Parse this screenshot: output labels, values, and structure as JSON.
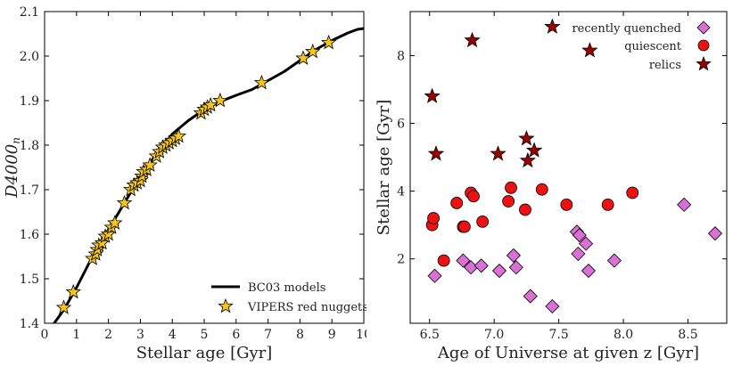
{
  "chart_data": [
    {
      "type": "line+scatter",
      "xlabel": "Stellar age [Gyr]",
      "ylabel": "D4000",
      "ylabel_sub": "n",
      "xlim": [
        0,
        10
      ],
      "ylim": [
        1.4,
        2.1
      ],
      "xticks": [
        0,
        1,
        2,
        3,
        4,
        5,
        6,
        7,
        8,
        9,
        10
      ],
      "yticks": [
        1.4,
        1.5,
        1.6,
        1.7,
        1.8,
        1.9,
        2.0,
        2.1
      ],
      "ytick_labels": [
        "1.4",
        "1.5",
        "1.6",
        "1.7",
        "1.8",
        "1.9",
        "2.0",
        "2.1"
      ],
      "legend": {
        "position": "bottom-right"
      },
      "series": [
        {
          "name": "BC03 models",
          "kind": "line",
          "color": "#000000",
          "x": [
            0.0,
            0.3,
            0.6,
            1.0,
            1.5,
            2.0,
            2.5,
            3.0,
            3.5,
            4.0,
            4.5,
            5.0,
            5.5,
            6.0,
            6.5,
            7.0,
            7.5,
            8.0,
            8.5,
            9.0,
            9.5,
            9.8,
            10.0
          ],
          "y": [
            1.37,
            1.4,
            1.43,
            1.48,
            1.55,
            1.61,
            1.67,
            1.73,
            1.78,
            1.825,
            1.855,
            1.88,
            1.898,
            1.912,
            1.925,
            1.945,
            1.965,
            1.99,
            2.015,
            2.035,
            2.052,
            2.06,
            2.062
          ]
        },
        {
          "name": "VIPERS red nuggets",
          "kind": "scatter",
          "marker": "star",
          "color": "#f5c518",
          "x": [
            0.6,
            0.9,
            1.5,
            1.6,
            1.65,
            1.7,
            1.8,
            1.9,
            2.0,
            2.1,
            2.2,
            2.5,
            2.7,
            2.8,
            2.9,
            3.0,
            3.05,
            3.1,
            3.2,
            3.3,
            3.5,
            3.6,
            3.7,
            3.8,
            3.9,
            4.0,
            4.1,
            4.2,
            4.9,
            5.0,
            5.1,
            5.2,
            5.5,
            6.8,
            8.1,
            8.4,
            8.9
          ],
          "y": [
            1.435,
            1.47,
            1.545,
            1.555,
            1.565,
            1.575,
            1.58,
            1.595,
            1.6,
            1.615,
            1.625,
            1.67,
            1.7,
            1.71,
            1.715,
            1.72,
            1.73,
            1.74,
            1.745,
            1.755,
            1.775,
            1.785,
            1.795,
            1.8,
            1.805,
            1.81,
            1.815,
            1.82,
            1.872,
            1.88,
            1.885,
            1.89,
            1.9,
            1.94,
            1.995,
            2.01,
            2.03
          ]
        }
      ]
    },
    {
      "type": "scatter",
      "xlabel": "Age of Universe at given z [Gyr]",
      "ylabel": "Stellar age [Gyr]",
      "xlim": [
        6.35,
        8.8
      ],
      "ylim": [
        0.1,
        9.3
      ],
      "xticks": [
        6.5,
        7.0,
        7.5,
        8.0,
        8.5
      ],
      "xtick_labels": [
        "6.5",
        "7.0",
        "7.5",
        "8.0",
        "8.5"
      ],
      "yticks": [
        2,
        4,
        6,
        8
      ],
      "ytick_labels": [
        "2",
        "4",
        "6",
        "8"
      ],
      "legend": {
        "position": "top-right"
      },
      "series": [
        {
          "name": "recently quenched",
          "marker": "diamond",
          "color": "#da70d6",
          "x": [
            6.54,
            6.76,
            6.82,
            6.9,
            7.04,
            7.15,
            7.17,
            7.28,
            7.45,
            7.64,
            7.65,
            7.66,
            7.71,
            7.73,
            7.93,
            8.47,
            8.71
          ],
          "y": [
            1.5,
            1.95,
            1.75,
            1.8,
            1.65,
            2.1,
            1.75,
            0.9,
            0.6,
            2.8,
            2.15,
            2.7,
            2.45,
            1.65,
            1.95,
            3.6,
            2.75
          ]
        },
        {
          "name": "quiescent",
          "marker": "circle",
          "color": "#ee1111",
          "x": [
            6.52,
            6.53,
            6.61,
            6.71,
            6.76,
            6.77,
            6.82,
            6.84,
            6.91,
            7.11,
            7.13,
            7.24,
            7.37,
            7.56,
            7.88,
            8.07
          ],
          "y": [
            3.0,
            3.2,
            1.95,
            3.65,
            2.95,
            2.95,
            3.95,
            3.85,
            3.1,
            3.7,
            4.1,
            3.45,
            4.05,
            3.6,
            3.6,
            3.95
          ]
        },
        {
          "name": "relics",
          "marker": "star",
          "color": "#990000",
          "x": [
            6.52,
            6.55,
            6.83,
            7.03,
            7.25,
            7.26,
            7.31,
            7.45,
            7.74
          ],
          "y": [
            6.8,
            5.1,
            8.45,
            5.1,
            5.55,
            4.9,
            5.2,
            8.85,
            8.15
          ]
        }
      ]
    }
  ]
}
